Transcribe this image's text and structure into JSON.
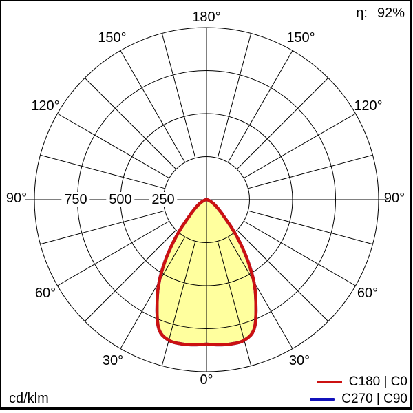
{
  "header": {
    "eta_label": "η:",
    "eta_value": "92%"
  },
  "footer": {
    "units": "cd/klm"
  },
  "axis": {
    "top": "180°",
    "bottom": "0°",
    "left": [
      "150°",
      "120°",
      "90°",
      "60°",
      "30°"
    ],
    "right": [
      "150°",
      "120°",
      "90°",
      "60°",
      "30°"
    ],
    "radial": [
      "750",
      "500",
      "250"
    ]
  },
  "legend": [
    {
      "label": "C180 | C0",
      "color": "#cc1111"
    },
    {
      "label": "C270 | C90",
      "color": "#1111bb"
    }
  ],
  "chart_data": {
    "type": "polar",
    "description": "Luminous intensity distribution curve",
    "units": "cd/klm",
    "efficiency_percent": 92,
    "r_max": 1000,
    "radial_gridlines": [
      250,
      500,
      750,
      1000
    ],
    "radial_tick_labels": [
      "750",
      "500",
      "250"
    ],
    "angle_grid_step_deg": 15,
    "angle_tick_labels": [
      "180°",
      "150°",
      "120°",
      "90°",
      "60°",
      "30°",
      "0°"
    ],
    "gamma_deg": [
      0,
      5,
      10,
      15,
      20,
      25,
      30,
      35,
      40,
      45,
      50,
      55,
      60,
      65,
      70,
      75,
      80,
      85,
      90
    ],
    "series": [
      {
        "name": "C180 | C0",
        "color": "#cc1111",
        "fill": "#ffff9e",
        "values": [
          840,
          847,
          851,
          846,
          805,
          680,
          550,
          400,
          262,
          155,
          103,
          70,
          47,
          31,
          19,
          11,
          5,
          2,
          0
        ]
      },
      {
        "name": "C270 | C90",
        "color": "#1111bb",
        "values": [
          840,
          847,
          851,
          846,
          805,
          680,
          550,
          400,
          262,
          155,
          103,
          70,
          47,
          31,
          19,
          11,
          5,
          2,
          0
        ],
        "note": "coincides with C180 | C0 curve (drawn beneath it)"
      }
    ]
  }
}
